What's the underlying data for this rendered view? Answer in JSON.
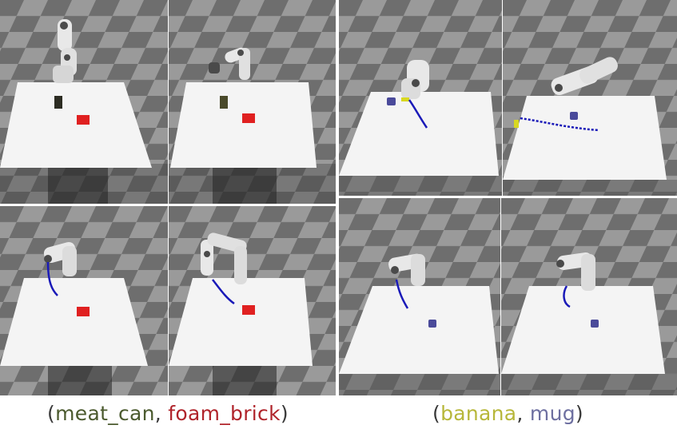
{
  "colors": {
    "floor_dark": "#6e6e6e",
    "floor_light": "#9a9a9a",
    "table": "#f4f4f4",
    "robot": "#e8e8e8",
    "robot_joint": "#4a4a4a",
    "trajectory": "#1a1ab8",
    "brick": "#e02020",
    "mug": "#4a4a9a",
    "can": "#3a3a2a",
    "banana": "#d8d820"
  },
  "captions": {
    "left": {
      "open": "(",
      "obj1": "meat_can",
      "sep": ", ",
      "obj2": "foam_brick",
      "close": ")",
      "obj1_color": "#4b5a2e",
      "obj2_color": "#b0242b",
      "paren_color": "#3a3a3a"
    },
    "right": {
      "open": "(",
      "obj1": "banana",
      "sep": ", ",
      "obj2": "mug",
      "close": ")",
      "obj1_color": "#b7b73a",
      "obj2_color": "#6d6fa0",
      "paren_color": "#3a3a3a"
    }
  },
  "panels": [
    {
      "id": "top-left-1",
      "object": "meat_can",
      "target": "foam_brick",
      "has_trajectory": false
    },
    {
      "id": "top-left-2",
      "object": "meat_can",
      "target": "foam_brick",
      "has_trajectory": false
    },
    {
      "id": "top-right-1",
      "object": "banana",
      "target": "mug",
      "has_trajectory": true
    },
    {
      "id": "top-right-2",
      "object": "banana",
      "target": "mug",
      "has_trajectory": true
    },
    {
      "id": "bottom-left-1",
      "object": "meat_can",
      "target": "foam_brick",
      "has_trajectory": true
    },
    {
      "id": "bottom-left-2",
      "object": "meat_can",
      "target": "foam_brick",
      "has_trajectory": true
    },
    {
      "id": "bottom-right-1",
      "object": "banana",
      "target": "mug",
      "has_trajectory": true
    },
    {
      "id": "bottom-right-2",
      "object": "banana",
      "target": "mug",
      "has_trajectory": true
    }
  ]
}
